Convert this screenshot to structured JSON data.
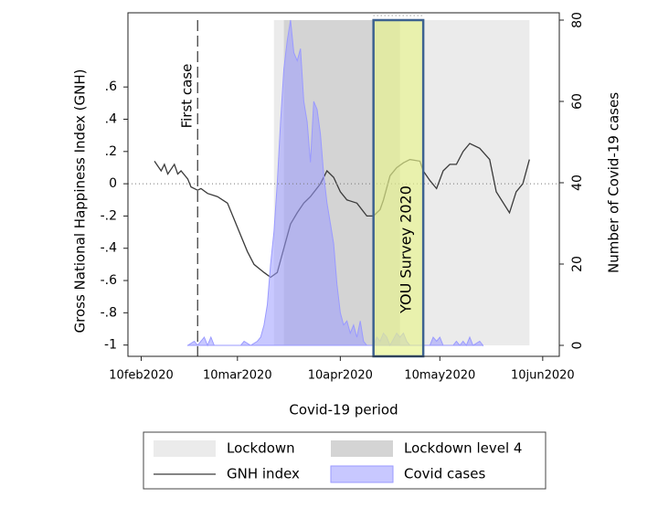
{
  "chart_data": {
    "type": "line",
    "xlabel": "Covid-19 period",
    "ylabel": "Gross National Happiness Index (GNH)",
    "y2label": "Number of Covid-19 cases",
    "xlim": [
      "2020-02-06",
      "2020-06-15"
    ],
    "xticks": [
      {
        "value": "2020-02-10",
        "label": "10feb2020"
      },
      {
        "value": "2020-03-10",
        "label": "10mar2020"
      },
      {
        "value": "2020-04-10",
        "label": "10apr2020"
      },
      {
        "value": "2020-05-10",
        "label": "10may2020"
      },
      {
        "value": "2020-06-10",
        "label": "10jun2020"
      }
    ],
    "ylim": [
      -1.07,
      1.06
    ],
    "yticks": [
      -1,
      {
        "value": -0.8,
        "label": "-.8"
      },
      {
        "value": -0.6,
        "label": "-.6"
      },
      {
        "value": -0.4,
        "label": "-.4"
      },
      {
        "value": -0.2,
        "label": "-.2"
      },
      0,
      {
        "value": 0.2,
        "label": ".2"
      },
      {
        "value": 0.4,
        "label": ".4"
      },
      {
        "value": 0.6,
        "label": ".6"
      }
    ],
    "y2lim": [
      -2.7,
      81.8
    ],
    "y2ticks": [
      0,
      20,
      40,
      60,
      80
    ],
    "reference_line": 0,
    "shading": [
      {
        "name": "Lockdown",
        "start": "2020-03-21",
        "end": "2020-06-06",
        "color": "#ebebeb"
      },
      {
        "name": "Lockdown level 4",
        "start": "2020-03-24",
        "end": "2020-04-28",
        "color": "#d4d4d4"
      }
    ],
    "first_case": {
      "text": "First case",
      "x": "2020-02-27"
    },
    "survey": {
      "text": "YOU Survey 2020",
      "start": "2020-04-20",
      "end": "2020-05-05",
      "color": "#e8f48c",
      "edge": "#3d6290"
    },
    "series": [
      {
        "name": "GNH index",
        "color": "#3a3a3a",
        "x": [
          "2020-02-14",
          "2020-02-16",
          "2020-02-17",
          "2020-02-18",
          "2020-02-20",
          "2020-02-21",
          "2020-02-22",
          "2020-02-24",
          "2020-02-25",
          "2020-02-27",
          "2020-02-28",
          "2020-03-01",
          "2020-03-04",
          "2020-03-07",
          "2020-03-09",
          "2020-03-11",
          "2020-03-13",
          "2020-03-15",
          "2020-03-18",
          "2020-03-20",
          "2020-03-22",
          "2020-03-24",
          "2020-03-26",
          "2020-03-28",
          "2020-03-30",
          "2020-04-01",
          "2020-04-04",
          "2020-04-06",
          "2020-04-08",
          "2020-04-10",
          "2020-04-12",
          "2020-04-15",
          "2020-04-18",
          "2020-04-20",
          "2020-04-22",
          "2020-04-23",
          "2020-04-25",
          "2020-04-27",
          "2020-04-29",
          "2020-05-01",
          "2020-05-04",
          "2020-05-05",
          "2020-05-07",
          "2020-05-09",
          "2020-05-11",
          "2020-05-13",
          "2020-05-15",
          "2020-05-17",
          "2020-05-19",
          "2020-05-22",
          "2020-05-25",
          "2020-05-27",
          "2020-05-31",
          "2020-06-02",
          "2020-06-04",
          "2020-06-06"
        ],
        "values": [
          0.14,
          0.08,
          0.12,
          0.06,
          0.12,
          0.06,
          0.08,
          0.03,
          -0.02,
          -0.04,
          -0.03,
          -0.06,
          -0.08,
          -0.12,
          -0.22,
          -0.32,
          -0.42,
          -0.5,
          -0.55,
          -0.58,
          -0.55,
          -0.4,
          -0.25,
          -0.18,
          -0.12,
          -0.08,
          0.0,
          0.08,
          0.04,
          -0.05,
          -0.1,
          -0.12,
          -0.2,
          -0.2,
          -0.16,
          -0.1,
          0.05,
          0.1,
          0.13,
          0.15,
          0.14,
          0.08,
          0.02,
          -0.03,
          0.08,
          0.12,
          0.12,
          0.2,
          0.25,
          0.22,
          0.15,
          -0.05,
          -0.18,
          -0.05,
          0.0,
          0.15
        ]
      },
      {
        "name": "Covid cases",
        "color": "#9a9aff",
        "axis": "y2",
        "kind": "area",
        "x": [
          "2020-02-24",
          "2020-02-26",
          "2020-02-27",
          "2020-02-29",
          "2020-03-01",
          "2020-03-02",
          "2020-03-03",
          "2020-03-11",
          "2020-03-12",
          "2020-03-14",
          "2020-03-16",
          "2020-03-17",
          "2020-03-18",
          "2020-03-19",
          "2020-03-20",
          "2020-03-21",
          "2020-03-22",
          "2020-03-23",
          "2020-03-24",
          "2020-03-25",
          "2020-03-26",
          "2020-03-27",
          "2020-03-28",
          "2020-03-29",
          "2020-03-30",
          "2020-03-31",
          "2020-04-01",
          "2020-04-02",
          "2020-04-03",
          "2020-04-04",
          "2020-04-05",
          "2020-04-06",
          "2020-04-07",
          "2020-04-08",
          "2020-04-09",
          "2020-04-10",
          "2020-04-11",
          "2020-04-12",
          "2020-04-13",
          "2020-04-14",
          "2020-04-15",
          "2020-04-16",
          "2020-04-17",
          "2020-04-18",
          "2020-04-20",
          "2020-04-21",
          "2020-04-22",
          "2020-04-23",
          "2020-04-24",
          "2020-04-25",
          "2020-04-27",
          "2020-04-28",
          "2020-04-29",
          "2020-04-30",
          "2020-05-01",
          "2020-05-07",
          "2020-05-08",
          "2020-05-09",
          "2020-05-10",
          "2020-05-11",
          "2020-05-14",
          "2020-05-15",
          "2020-05-16",
          "2020-05-17",
          "2020-05-18",
          "2020-05-19",
          "2020-05-20",
          "2020-05-22",
          "2020-05-23"
        ],
        "values": [
          0,
          1,
          0,
          2,
          0,
          2,
          0,
          0,
          1,
          0,
          1,
          2,
          5,
          10,
          20,
          28,
          40,
          55,
          68,
          75,
          80,
          72,
          70,
          73,
          60,
          55,
          45,
          60,
          58,
          52,
          42,
          35,
          30,
          25,
          15,
          8,
          5,
          6,
          3,
          5,
          2,
          6,
          1,
          0,
          0,
          2,
          1,
          3,
          2,
          0,
          3,
          2,
          3,
          1,
          0,
          0,
          2,
          1,
          2,
          0,
          0,
          1,
          0,
          1,
          0,
          2,
          0,
          1,
          0
        ]
      }
    ]
  }
}
